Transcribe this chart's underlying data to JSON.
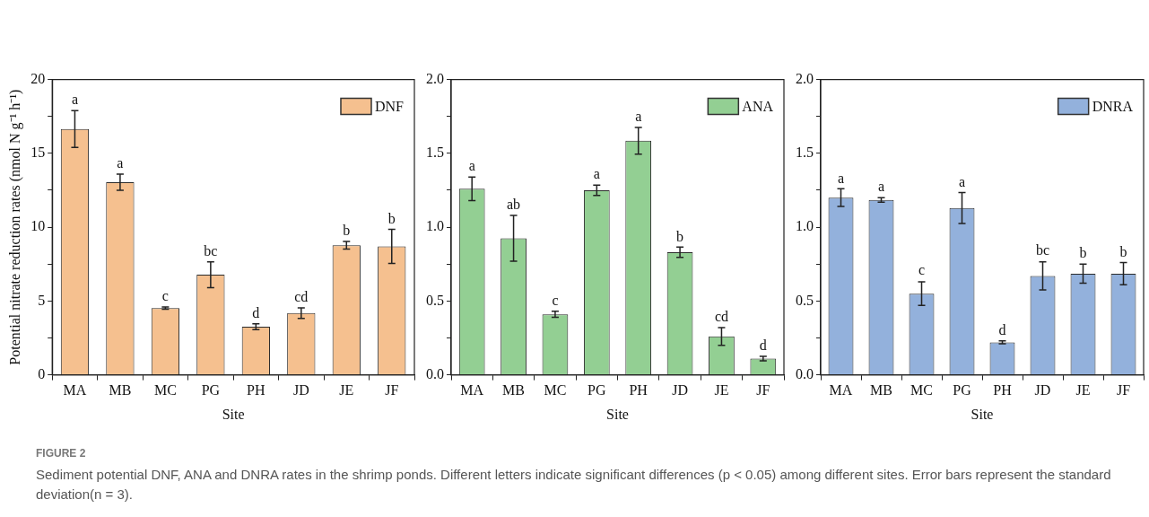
{
  "chart_data": [
    {
      "type": "bar",
      "ylabel": "Potential nitrate reduction rates (nmol N g⁻¹ h⁻¹)",
      "xlabel": "Site",
      "categories": [
        "MA",
        "MB",
        "MC",
        "PG",
        "PH",
        "JD",
        "JE",
        "JF"
      ],
      "series": [
        {
          "name": "DNF",
          "color": "#f5c08f",
          "values": [
            16.65,
            13.05,
            4.52,
            6.78,
            3.26,
            4.18,
            8.78,
            8.7
          ],
          "errors": [
            1.25,
            0.55,
            0.08,
            0.87,
            0.2,
            0.36,
            0.26,
            1.15
          ]
        }
      ],
      "ylim": [
        0,
        20
      ],
      "yticks": [
        0,
        {
          "value": 2.5,
          "label": null
        },
        5,
        {
          "value": 7.5,
          "label": null
        },
        10,
        {
          "value": 12.5,
          "label": null
        },
        15,
        {
          "value": 17.5,
          "label": null
        },
        20
      ],
      "grid": false,
      "legend": "top right",
      "annotations": [
        {
          "text": "a",
          "x": "MA",
          "y": 17.9
        },
        {
          "text": "a",
          "x": "MB",
          "y": 13.6
        },
        {
          "text": "c",
          "x": "MC",
          "y": 4.6
        },
        {
          "text": "bc",
          "x": "PG",
          "y": 7.65
        },
        {
          "text": "d",
          "x": "PH",
          "y": 3.46
        },
        {
          "text": "cd",
          "x": "JD",
          "y": 4.54
        },
        {
          "text": "b",
          "x": "JE",
          "y": 9.04
        },
        {
          "text": "b",
          "x": "JF",
          "y": 9.85
        },
        "FIGURE 2",
        "Sediment potential DNF, ANA and DNRA rates in the shrimp ponds. Different letters indicate significant differences (p < 0.05) among different sites. Error bars represent the standard deviation(n = 3)."
      ]
    },
    {
      "type": "bar",
      "xlabel": "Site",
      "categories": [
        "MA",
        "MB",
        "MC",
        "PG",
        "PH",
        "JD",
        "JE",
        "JF"
      ],
      "series": [
        {
          "name": "ANA",
          "color": "#93cf93",
          "values": [
            1.26,
            0.925,
            0.41,
            1.25,
            1.585,
            0.83,
            0.26,
            0.11
          ],
          "errors": [
            0.08,
            0.155,
            0.02,
            0.035,
            0.09,
            0.035,
            0.06,
            0.015
          ]
        }
      ],
      "ylim": [
        0,
        2
      ],
      "yticks": [
        {
          "value": 0,
          "label": "0.0"
        },
        {
          "value": 0.25,
          "label": null
        },
        {
          "value": 0.5,
          "label": "0.5"
        },
        {
          "value": 0.75,
          "label": null
        },
        {
          "value": 1,
          "label": "1.0"
        },
        {
          "value": 1.25,
          "label": null
        },
        {
          "value": 1.5,
          "label": "1.5"
        },
        {
          "value": 1.75,
          "label": null
        },
        {
          "value": 2,
          "label": "2.0"
        }
      ],
      "grid": false,
      "legend": "top right",
      "annotations": [
        {
          "text": "a",
          "x": "MA",
          "y": 1.34
        },
        {
          "text": "ab",
          "x": "MB",
          "y": 1.08
        },
        {
          "text": "c",
          "x": "MC",
          "y": 0.43
        },
        {
          "text": "a",
          "x": "PG",
          "y": 1.29
        },
        {
          "text": "a",
          "x": "PH",
          "y": 1.675
        },
        {
          "text": "b",
          "x": "JD",
          "y": 0.865
        },
        {
          "text": "cd",
          "x": "JE",
          "y": 0.32
        },
        {
          "text": "d",
          "x": "JF",
          "y": 0.125
        }
      ]
    },
    {
      "type": "bar",
      "xlabel": "Site",
      "categories": [
        "MA",
        "MB",
        "MC",
        "PG",
        "PH",
        "JD",
        "JE",
        "JF"
      ],
      "series": [
        {
          "name": "DNRA",
          "color": "#93b1dc",
          "values": [
            1.2,
            1.185,
            0.55,
            1.13,
            0.22,
            0.67,
            0.685,
            0.685
          ],
          "errors": [
            0.06,
            0.015,
            0.08,
            0.105,
            0.01,
            0.095,
            0.065,
            0.075
          ]
        }
      ],
      "ylim": [
        0,
        2
      ],
      "yticks": [
        {
          "value": 0,
          "label": "0.0"
        },
        {
          "value": 0.25,
          "label": null
        },
        {
          "value": 0.5,
          "label": "0.5"
        },
        {
          "value": 0.75,
          "label": null
        },
        {
          "value": 1,
          "label": "1.0"
        },
        {
          "value": 1.25,
          "label": null
        },
        {
          "value": 1.5,
          "label": "1.5"
        },
        {
          "value": 1.75,
          "label": null
        },
        {
          "value": 2,
          "label": "2.0"
        }
      ],
      "grid": false,
      "legend": "top right",
      "annotations": [
        {
          "text": "a",
          "x": "MA",
          "y": 1.26
        },
        {
          "text": "a",
          "x": "MB",
          "y": 1.2
        },
        {
          "text": "c",
          "x": "MC",
          "y": 0.635
        },
        {
          "text": "a",
          "x": "PG",
          "y": 1.235
        },
        {
          "text": "d",
          "x": "PH",
          "y": 0.23
        },
        {
          "text": "bc",
          "x": "JD",
          "y": 0.77
        },
        {
          "text": "b",
          "x": "JE",
          "y": 0.75
        },
        {
          "text": "b",
          "x": "JF",
          "y": 0.76
        }
      ]
    }
  ]
}
